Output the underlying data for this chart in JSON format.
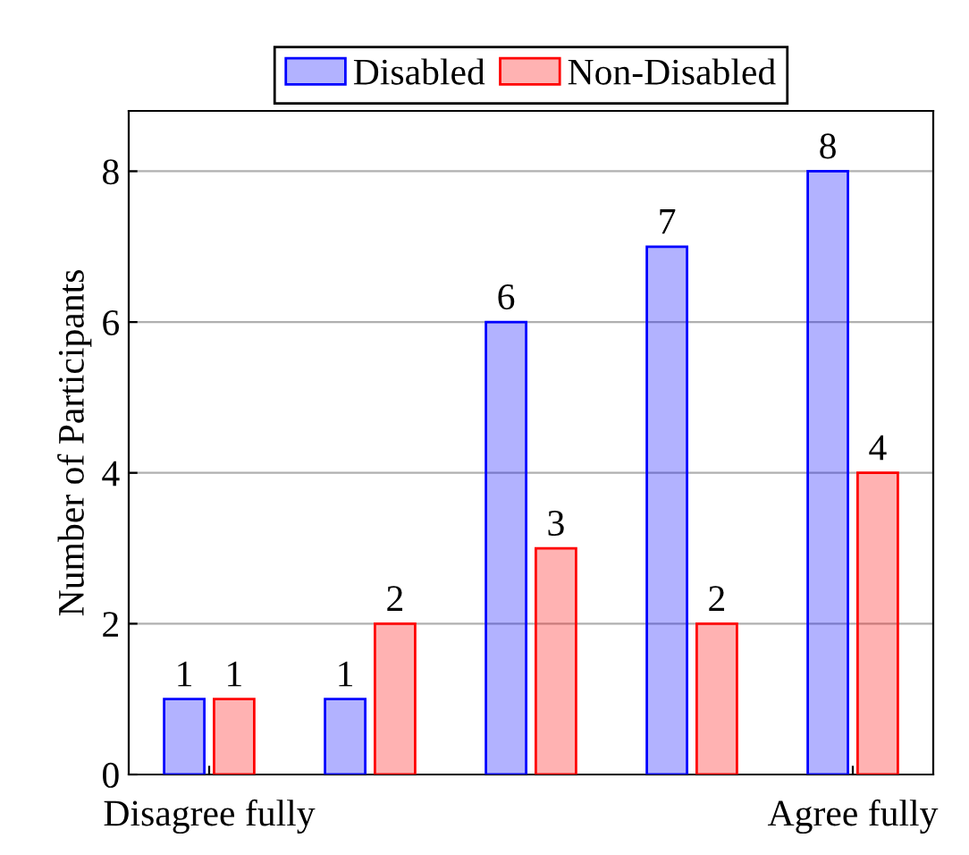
{
  "chart_data": {
    "type": "bar",
    "ylabel": "Number of Participants",
    "categories": [
      "Disagree fully",
      null,
      null,
      null,
      "Agree fully"
    ],
    "series": [
      {
        "name": "Disabled",
        "color": "#0000ff",
        "values": [
          1,
          1,
          6,
          7,
          8
        ]
      },
      {
        "name": "Non-Disabled",
        "color": "#ff0000",
        "values": [
          1,
          2,
          3,
          2,
          4
        ]
      }
    ],
    "ylim": [
      0,
      8.8
    ],
    "yticks": [
      0,
      2,
      4,
      6,
      8
    ],
    "grid": "y",
    "legend": "top",
    "data_labels": true
  }
}
